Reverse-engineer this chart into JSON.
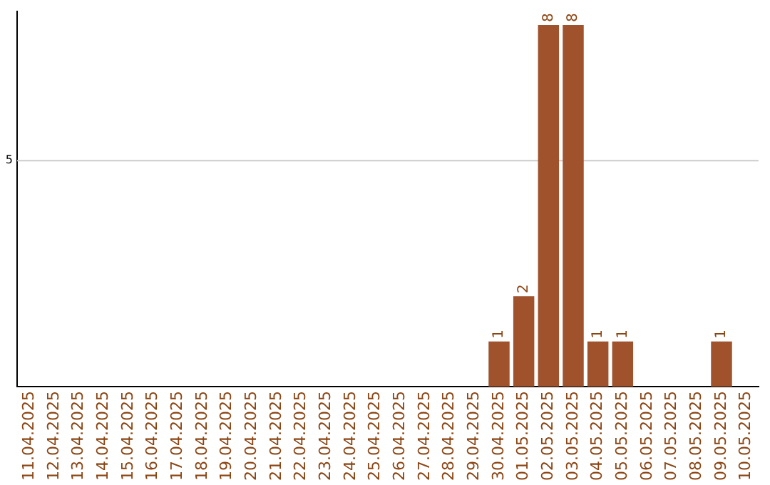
{
  "chart_data": {
    "type": "bar",
    "categories": [
      "11.04.2025",
      "12.04.2025",
      "13.04.2025",
      "14.04.2025",
      "15.04.2025",
      "16.04.2025",
      "17.04.2025",
      "18.04.2025",
      "19.04.2025",
      "20.04.2025",
      "21.04.2025",
      "22.04.2025",
      "23.04.2025",
      "24.04.2025",
      "25.04.2025",
      "26.04.2025",
      "27.04.2025",
      "28.04.2025",
      "29.04.2025",
      "30.04.2025",
      "01.05.2025",
      "02.05.2025",
      "03.05.2025",
      "04.05.2025",
      "05.05.2025",
      "06.05.2025",
      "07.05.2025",
      "08.05.2025",
      "09.05.2025",
      "10.05.2025"
    ],
    "values": [
      null,
      null,
      null,
      null,
      null,
      null,
      null,
      null,
      null,
      null,
      null,
      null,
      null,
      null,
      null,
      null,
      null,
      null,
      null,
      1,
      2,
      8,
      8,
      1,
      1,
      null,
      null,
      null,
      1,
      null
    ],
    "data_labels": true,
    "color": "#a0522d",
    "ylim": [
      0,
      8.3
    ],
    "ref_lines": [
      {
        "axis": "y",
        "value": 5,
        "label": "5",
        "color": "#cccccc"
      }
    ],
    "legend": false
  }
}
